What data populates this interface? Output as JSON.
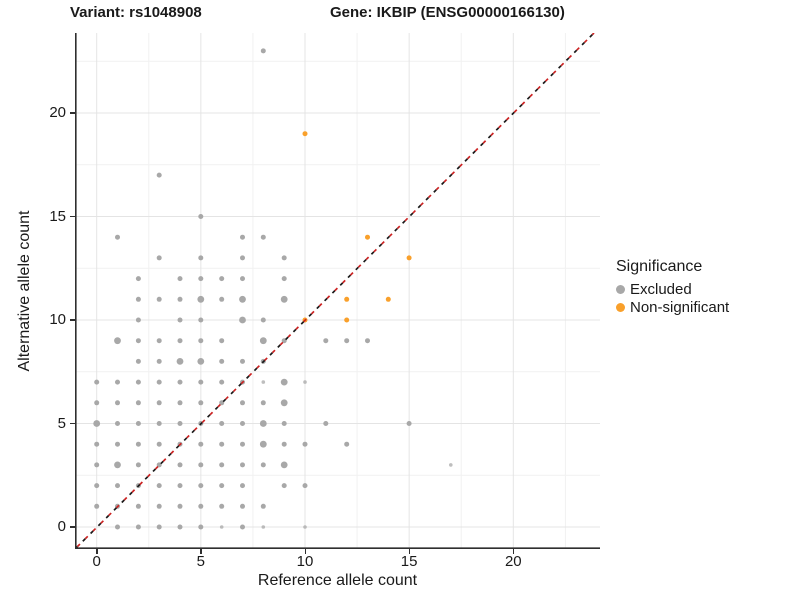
{
  "titles": {
    "variant": "Variant: rs1048908",
    "gene": "Gene: IKBIP (ENSG00000166130)"
  },
  "legend": {
    "title": "Significance",
    "items": [
      {
        "label": "Excluded",
        "color": "#A8A8A8"
      },
      {
        "label": "Non-significant",
        "color": "#F9A02B"
      }
    ]
  },
  "colors": {
    "excluded_dot": "#A8A8A8",
    "nonsignificant_dot": "#F9A02B",
    "identity_line_black": "#1a1a1a",
    "identity_line_red": "#CC2222",
    "grid_major": "#E4E4E4",
    "grid_minor": "#F1F1F1",
    "axis_line": "#2f2f2f"
  },
  "chart_data": {
    "type": "scatter",
    "title": "",
    "xlabel": "Reference allele count",
    "ylabel": "Alternative allele count",
    "x_ticks": [
      0,
      5,
      10,
      15,
      20
    ],
    "y_ticks": [
      0,
      5,
      10,
      15,
      20
    ],
    "x_minor_ticks": [
      2.5,
      7.5,
      12.5,
      17.5,
      22.5
    ],
    "y_minor_ticks": [
      2.5,
      7.5,
      12.5,
      17.5,
      22.5
    ],
    "xlim": [
      -1.05,
      24.2
    ],
    "ylim": [
      -1.06,
      23.9
    ],
    "grid": true,
    "legend_position": "right",
    "identity_line": {
      "slope": 1,
      "intercept": 0,
      "style": "dashed",
      "colors": [
        "#1a1a1a",
        "#CC2222"
      ]
    },
    "series": [
      {
        "name": "Excluded",
        "color": "#A8A8A8",
        "points": [
          [
            1,
            0,
            2
          ],
          [
            2,
            0,
            2
          ],
          [
            3,
            0,
            2
          ],
          [
            4,
            0,
            2
          ],
          [
            5,
            0,
            2
          ],
          [
            6,
            0,
            1
          ],
          [
            7,
            0,
            2
          ],
          [
            8,
            0,
            1
          ],
          [
            10,
            0,
            1
          ],
          [
            0,
            1,
            2
          ],
          [
            1,
            1,
            2
          ],
          [
            2,
            1,
            2
          ],
          [
            3,
            1,
            2
          ],
          [
            4,
            1,
            2
          ],
          [
            5,
            1,
            2
          ],
          [
            6,
            1,
            2
          ],
          [
            7,
            1,
            2
          ],
          [
            8,
            1,
            2
          ],
          [
            0,
            2,
            2
          ],
          [
            1,
            2,
            2
          ],
          [
            2,
            2,
            2
          ],
          [
            3,
            2,
            2
          ],
          [
            4,
            2,
            2
          ],
          [
            5,
            2,
            2
          ],
          [
            6,
            2,
            2
          ],
          [
            7,
            2,
            2
          ],
          [
            9,
            2,
            2
          ],
          [
            10,
            2,
            2
          ],
          [
            0,
            3,
            2
          ],
          [
            1,
            3,
            3
          ],
          [
            2,
            3,
            2
          ],
          [
            3,
            3,
            2
          ],
          [
            4,
            3,
            2
          ],
          [
            5,
            3,
            2
          ],
          [
            6,
            3,
            2
          ],
          [
            7,
            3,
            2
          ],
          [
            8,
            3,
            2
          ],
          [
            9,
            3,
            3
          ],
          [
            17,
            3,
            1
          ],
          [
            0,
            4,
            2
          ],
          [
            1,
            4,
            2
          ],
          [
            2,
            4,
            2
          ],
          [
            3,
            4,
            2
          ],
          [
            4,
            4,
            2
          ],
          [
            5,
            4,
            2
          ],
          [
            6,
            4,
            2
          ],
          [
            7,
            4,
            2
          ],
          [
            8,
            4,
            3
          ],
          [
            9,
            4,
            2
          ],
          [
            10,
            4,
            2
          ],
          [
            12,
            4,
            2
          ],
          [
            0,
            5,
            3
          ],
          [
            1,
            5,
            2
          ],
          [
            2,
            5,
            2
          ],
          [
            3,
            5,
            2
          ],
          [
            4,
            5,
            2
          ],
          [
            5,
            5,
            2
          ],
          [
            6,
            5,
            2
          ],
          [
            7,
            5,
            2
          ],
          [
            8,
            5,
            3
          ],
          [
            9,
            5,
            2
          ],
          [
            11,
            5,
            2
          ],
          [
            15,
            5,
            2
          ],
          [
            0,
            6,
            2
          ],
          [
            1,
            6,
            2
          ],
          [
            2,
            6,
            2
          ],
          [
            3,
            6,
            2
          ],
          [
            4,
            6,
            2
          ],
          [
            5,
            6,
            2
          ],
          [
            6,
            6,
            2
          ],
          [
            7,
            6,
            2
          ],
          [
            8,
            6,
            2
          ],
          [
            9,
            6,
            3
          ],
          [
            0,
            7,
            2
          ],
          [
            1,
            7,
            2
          ],
          [
            2,
            7,
            2
          ],
          [
            3,
            7,
            2
          ],
          [
            4,
            7,
            2
          ],
          [
            5,
            7,
            2
          ],
          [
            6,
            7,
            2
          ],
          [
            7,
            7,
            2
          ],
          [
            8,
            7,
            1
          ],
          [
            9,
            7,
            3
          ],
          [
            10,
            7,
            1
          ],
          [
            2,
            8,
            2
          ],
          [
            3,
            8,
            2
          ],
          [
            4,
            8,
            3
          ],
          [
            5,
            8,
            3
          ],
          [
            6,
            8,
            2
          ],
          [
            7,
            8,
            2
          ],
          [
            8,
            8,
            2
          ],
          [
            1,
            9,
            3
          ],
          [
            2,
            9,
            2
          ],
          [
            3,
            9,
            2
          ],
          [
            4,
            9,
            2
          ],
          [
            5,
            9,
            2
          ],
          [
            6,
            9,
            2
          ],
          [
            8,
            9,
            3
          ],
          [
            9,
            9,
            2
          ],
          [
            11,
            9,
            2
          ],
          [
            12,
            9,
            2
          ],
          [
            13,
            9,
            2
          ],
          [
            2,
            10,
            2
          ],
          [
            4,
            10,
            2
          ],
          [
            5,
            10,
            2
          ],
          [
            7,
            10,
            3
          ],
          [
            8,
            10,
            2
          ],
          [
            2,
            11,
            2
          ],
          [
            3,
            11,
            2
          ],
          [
            4,
            11,
            2
          ],
          [
            5,
            11,
            3
          ],
          [
            6,
            11,
            2
          ],
          [
            7,
            11,
            3
          ],
          [
            9,
            11,
            3
          ],
          [
            2,
            12,
            2
          ],
          [
            4,
            12,
            2
          ],
          [
            5,
            12,
            2
          ],
          [
            6,
            12,
            2
          ],
          [
            7,
            12,
            2
          ],
          [
            9,
            12,
            2
          ],
          [
            3,
            13,
            2
          ],
          [
            5,
            13,
            2
          ],
          [
            7,
            13,
            2
          ],
          [
            9,
            13,
            2
          ],
          [
            1,
            14,
            2
          ],
          [
            7,
            14,
            2
          ],
          [
            8,
            14,
            2
          ],
          [
            5,
            15,
            2
          ],
          [
            3,
            17,
            2
          ],
          [
            8,
            23,
            2
          ]
        ]
      },
      {
        "name": "Non-significant",
        "color": "#F9A02B",
        "points": [
          [
            10,
            10,
            2
          ],
          [
            12,
            10,
            2
          ],
          [
            12,
            11,
            2
          ],
          [
            14,
            11,
            2
          ],
          [
            15,
            13,
            2
          ],
          [
            13,
            14,
            2
          ],
          [
            10,
            19,
            2
          ]
        ]
      }
    ]
  }
}
